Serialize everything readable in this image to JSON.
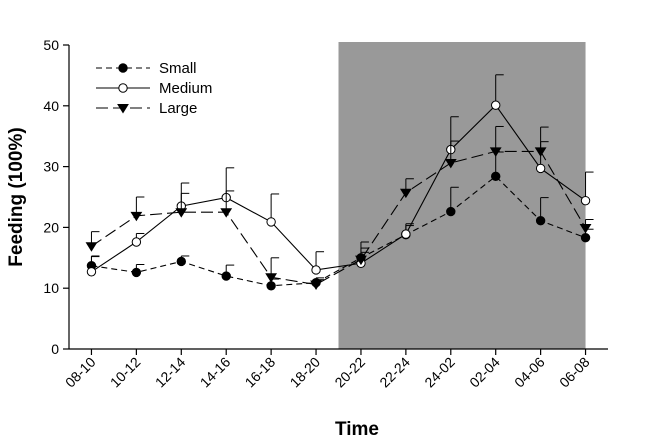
{
  "chart_data": {
    "type": "line",
    "xlabel": "Time",
    "ylabel": "Feeding (100%)",
    "categories": [
      "08-10",
      "10-12",
      "12-14",
      "14-16",
      "16-18",
      "18-20",
      "20-22",
      "22-24",
      "24-02",
      "02-04",
      "04-06",
      "06-08"
    ],
    "ylim": [
      0,
      50
    ],
    "yticks": [
      0,
      10,
      20,
      30,
      40,
      50
    ],
    "grid": false,
    "legend_position": "top-left",
    "dark_period": {
      "from": "20-22",
      "to": "06-08",
      "color": "#999999"
    },
    "series": [
      {
        "name": "Small",
        "marker": "filled-circle",
        "dash": "dashed",
        "values": [
          13.7,
          12.6,
          14.4,
          12.0,
          10.4,
          10.9,
          15.0,
          18.8,
          22.6,
          28.4,
          21.1,
          18.3
        ],
        "errors": [
          1.5,
          1.3,
          0.9,
          1.8,
          1.1,
          0.8,
          1.6,
          1.5,
          4.0,
          4.0,
          3.8,
          1.4
        ]
      },
      {
        "name": "Medium",
        "marker": "open-circle",
        "dash": "solid",
        "values": [
          12.7,
          17.6,
          23.5,
          24.9,
          20.9,
          13.0,
          14.1,
          18.9,
          32.8,
          40.1,
          29.7,
          24.4
        ],
        "errors": [
          2.6,
          1.4,
          3.8,
          4.9,
          4.6,
          3.0,
          1.8,
          1.7,
          5.4,
          5.0,
          4.4,
          4.7
        ]
      },
      {
        "name": "Large",
        "marker": "filled-triangle-down",
        "dash": "long-dashed",
        "values": [
          16.9,
          21.9,
          22.5,
          22.5,
          11.8,
          10.6,
          14.7,
          25.7,
          30.6,
          32.5,
          32.5,
          19.9
        ],
        "errors": [
          2.4,
          3.1,
          3.1,
          3.5,
          3.2,
          0.8,
          2.9,
          2.3,
          3.6,
          4.1,
          4.0,
          1.4
        ]
      }
    ]
  }
}
